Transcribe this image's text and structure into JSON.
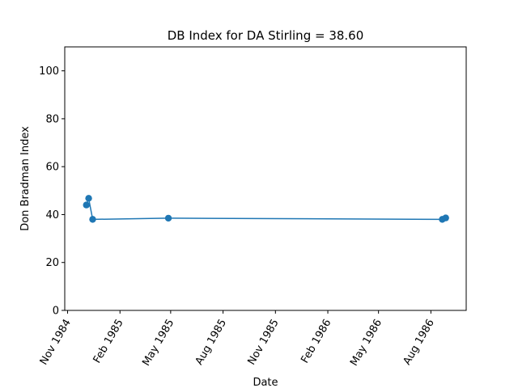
{
  "chart_data": {
    "type": "line",
    "title": "DB Index for DA Stirling = 38.60",
    "xlabel": "Date",
    "ylabel": "Don Bradman Index",
    "ylim": [
      0,
      110
    ],
    "xlim": [
      "1984-10-27",
      "1986-10-02"
    ],
    "yticks": [
      0,
      20,
      40,
      60,
      80,
      100
    ],
    "xticks": [
      {
        "date": "1984-11-01",
        "label": "Nov 1984"
      },
      {
        "date": "1985-02-01",
        "label": "Feb 1985"
      },
      {
        "date": "1985-05-01",
        "label": "May 1985"
      },
      {
        "date": "1985-08-01",
        "label": "Aug 1985"
      },
      {
        "date": "1985-11-01",
        "label": "Nov 1985"
      },
      {
        "date": "1986-02-01",
        "label": "Feb 1986"
      },
      {
        "date": "1986-05-01",
        "label": "May 1986"
      },
      {
        "date": "1986-08-01",
        "label": "Aug 1986"
      }
    ],
    "grid": false,
    "color": "#1f77b4",
    "series": [
      {
        "name": "",
        "points": [
          {
            "x": "1984-12-04",
            "y": 44.0
          },
          {
            "x": "1984-12-08",
            "y": 46.8
          },
          {
            "x": "1984-12-15",
            "y": 38.0
          },
          {
            "x": "1985-04-27",
            "y": 38.5
          },
          {
            "x": "1986-08-21",
            "y": 38.0
          },
          {
            "x": "1986-08-27",
            "y": 38.6
          }
        ]
      }
    ]
  }
}
